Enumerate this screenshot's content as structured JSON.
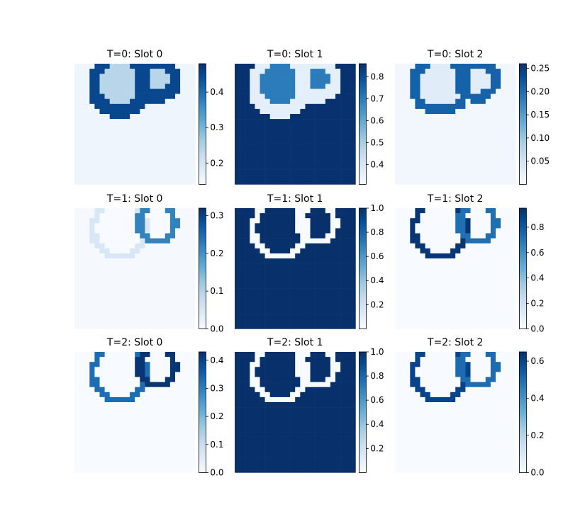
{
  "figure": {
    "background": "#ffffff",
    "colormap": "Blues"
  },
  "chart_data": [
    {
      "type": "heatmap",
      "title": "T=0: Slot 0",
      "colorbar_range": [
        0.14,
        0.48
      ],
      "colorbar_ticks": [
        "0.2",
        "0.3",
        "0.4"
      ],
      "colorbar_tick_values": [
        0.2,
        0.3,
        0.4
      ],
      "colormap": "Blues",
      "grid": false,
      "background_value": 0.155,
      "inside_value": 0.24,
      "mask_bbox_cols": [
        1,
        20
      ],
      "circles": [
        [
          9,
          4.2,
          5.3
        ],
        [
          16.4,
          3.1,
          3.6
        ]
      ],
      "ring_value": 0.45,
      "ring_width": 1.2
    },
    {
      "type": "heatmap",
      "title": "T=0: Slot 1",
      "colorbar_range": [
        0.31,
        0.86
      ],
      "colorbar_ticks": [
        "0.4",
        "0.5",
        "0.6",
        "0.7",
        "0.8"
      ],
      "colorbar_tick_values": [
        0.4,
        0.5,
        0.6,
        0.7,
        0.8
      ],
      "colormap": "Blues",
      "grid": false,
      "background_value": 0.855,
      "inside_value": 0.7,
      "mask_bbox_cols": [
        1,
        20
      ],
      "circles": [
        [
          9,
          4.2,
          5.3
        ],
        [
          16.4,
          3.1,
          3.6
        ]
      ],
      "ring_value": 0.36,
      "ring_width": 1.2
    },
    {
      "type": "heatmap",
      "title": "T=0: Slot 2",
      "colorbar_range": [
        0.0,
        0.26
      ],
      "colorbar_ticks": [
        "0.05",
        "0.10",
        "0.15",
        "0.20",
        "0.25"
      ],
      "colorbar_tick_values": [
        0.05,
        0.1,
        0.15,
        0.2,
        0.25
      ],
      "colormap": "Blues",
      "grid": false,
      "background_value": 0.008,
      "inside_value": 0.03,
      "mask_bbox_cols": [
        1,
        20
      ],
      "circles": [
        [
          9,
          4.2,
          5.3
        ],
        [
          16.4,
          3.1,
          3.6
        ]
      ],
      "ring_value": 0.21,
      "ring_width": 1.0
    },
    {
      "type": "heatmap",
      "title": "T=1: Slot 0",
      "colorbar_range": [
        0.0,
        0.32
      ],
      "colorbar_ticks": [
        "0.0",
        "0.1",
        "0.2",
        "0.3"
      ],
      "colorbar_tick_values": [
        0.0,
        0.1,
        0.2,
        0.3
      ],
      "colormap": "Blues",
      "grid": false,
      "background_value": 0.004,
      "inside_value": 0.0,
      "mask_bbox_cols": [
        1,
        20
      ],
      "circles": [
        [
          9,
          4.2,
          5.3
        ],
        [
          16.4,
          3.1,
          3.6
        ]
      ],
      "ring_value": 0.05,
      "ring_value_right": 0.22,
      "ring_width": 0.7
    },
    {
      "type": "heatmap",
      "title": "T=1: Slot 1",
      "colorbar_range": [
        0.0,
        1.0
      ],
      "colorbar_ticks": [
        "0.2",
        "0.4",
        "0.6",
        "0.8",
        "1.0"
      ],
      "colorbar_tick_values": [
        0.2,
        0.4,
        0.6,
        0.8,
        1.0
      ],
      "colormap": "Blues",
      "grid": false,
      "background_value": 1.0,
      "inside_value": 1.0,
      "mask_bbox_cols": [
        1,
        20
      ],
      "circles": [
        [
          9,
          4.2,
          5.3
        ],
        [
          16.4,
          3.1,
          3.6
        ]
      ],
      "ring_value": 0.0,
      "ring_width": 0.7
    },
    {
      "type": "heatmap",
      "title": "T=1: Slot 2",
      "colorbar_range": [
        0.0,
        0.95
      ],
      "colorbar_ticks": [
        "0.0",
        "0.2",
        "0.4",
        "0.6",
        "0.8"
      ],
      "colorbar_tick_values": [
        0.0,
        0.2,
        0.4,
        0.6,
        0.8
      ],
      "colormap": "Blues",
      "grid": false,
      "background_value": 0.0,
      "inside_value": 0.0,
      "mask_bbox_cols": [
        1,
        20
      ],
      "circles": [
        [
          9,
          4.2,
          5.3
        ],
        [
          16.4,
          3.1,
          3.6
        ]
      ],
      "ring_value": 0.93,
      "ring_value_right": 0.72,
      "ring_width": 0.7
    },
    {
      "type": "heatmap",
      "title": "T=2: Slot 0",
      "colorbar_range": [
        0.0,
        0.43
      ],
      "colorbar_ticks": [
        "0.0",
        "0.1",
        "0.2",
        "0.3",
        "0.4"
      ],
      "colorbar_tick_values": [
        0.0,
        0.1,
        0.2,
        0.3,
        0.4
      ],
      "colormap": "Blues",
      "grid": false,
      "background_value": 0.0,
      "inside_value": 0.0,
      "mask_bbox_cols": [
        1,
        20
      ],
      "circles": [
        [
          9,
          4.2,
          5.3
        ],
        [
          16.4,
          3.1,
          3.6
        ]
      ],
      "ring_value": 0.33,
      "ring_value_right": 0.42,
      "ring_width": 0.7
    },
    {
      "type": "heatmap",
      "title": "T=2: Slot 1",
      "colorbar_range": [
        0.0,
        1.0
      ],
      "colorbar_ticks": [
        "0.2",
        "0.4",
        "0.6",
        "0.8",
        "1.0"
      ],
      "colorbar_tick_values": [
        0.2,
        0.4,
        0.6,
        0.8,
        1.0
      ],
      "colormap": "Blues",
      "grid": false,
      "background_value": 1.0,
      "inside_value": 1.0,
      "mask_bbox_cols": [
        1,
        20
      ],
      "circles": [
        [
          9,
          4.2,
          5.3
        ],
        [
          16.4,
          3.1,
          3.6
        ]
      ],
      "ring_value": 0.0,
      "ring_width": 0.7
    },
    {
      "type": "heatmap",
      "title": "T=2: Slot 2",
      "colorbar_range": [
        0.0,
        0.65
      ],
      "colorbar_ticks": [
        "0.0",
        "0.2",
        "0.4",
        "0.6"
      ],
      "colorbar_tick_values": [
        0.0,
        0.2,
        0.4,
        0.6
      ],
      "colormap": "Blues",
      "grid": false,
      "background_value": 0.0,
      "inside_value": 0.0,
      "mask_bbox_cols": [
        1,
        20
      ],
      "circles": [
        [
          9,
          4.2,
          5.3
        ],
        [
          16.4,
          3.1,
          3.6
        ]
      ],
      "ring_value": 0.6,
      "ring_value_right": 0.5,
      "ring_width": 0.7
    }
  ]
}
